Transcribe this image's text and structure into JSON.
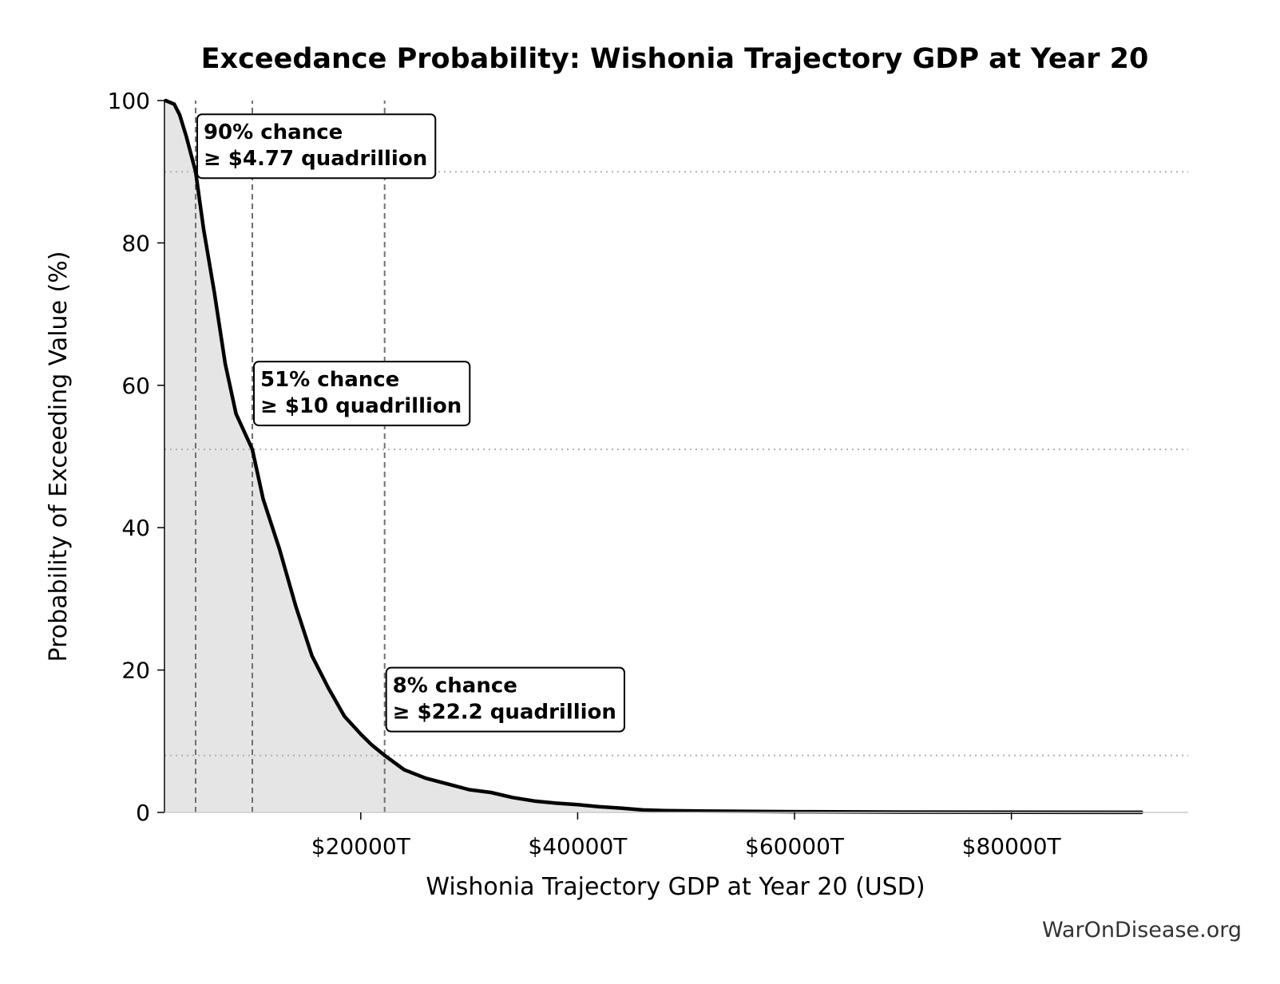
{
  "chart_data": {
    "type": "area",
    "title": "Exceedance Probability: Wishonia Trajectory GDP at Year 20",
    "xlabel": "Wishonia Trajectory GDP at Year 20 (USD)",
    "ylabel": "Probability of Exceeding Value (%)",
    "xlim": [
      1900,
      96300
    ],
    "ylim": [
      0,
      100
    ],
    "x_ticks": [
      20000,
      40000,
      60000,
      80000
    ],
    "x_tick_labels": [
      "$20000T",
      "$40000T",
      "$60000T",
      "$80000T"
    ],
    "y_ticks": [
      0,
      20,
      40,
      60,
      80,
      100
    ],
    "y_tick_labels": [
      "0",
      "20",
      "40",
      "60",
      "80",
      "100"
    ],
    "curve": {
      "x": [
        2000,
        2800,
        3300,
        3900,
        4770,
        5500,
        6500,
        7500,
        8500,
        10000,
        11000,
        12500,
        14000,
        15500,
        17000,
        18500,
        20000,
        21000,
        22200,
        24000,
        26000,
        28000,
        30000,
        32000,
        34000,
        36000,
        38000,
        40000,
        42000,
        44000,
        46000,
        48000,
        52000,
        60000,
        70000,
        80000,
        92000
      ],
      "y": [
        100,
        99.5,
        98,
        95,
        90,
        82,
        73,
        63,
        56,
        51,
        44,
        37,
        29,
        22,
        17.5,
        13.5,
        11,
        9.5,
        8,
        6,
        4.8,
        4,
        3.2,
        2.8,
        2.1,
        1.6,
        1.3,
        1.1,
        0.8,
        0.6,
        0.35,
        0.25,
        0.18,
        0.1,
        0.05,
        0.02,
        0.01
      ]
    },
    "thresholds": [
      {
        "x": 4770,
        "y": 90,
        "line1": "90% chance",
        "line2": "≥ $4.77 quadrillion"
      },
      {
        "x": 10000,
        "y": 51,
        "line1": "51% chance",
        "line2": "≥ $10 quadrillion"
      },
      {
        "x": 22200,
        "y": 8,
        "line1": "8% chance",
        "line2": "≥ $22.2 quadrillion"
      }
    ],
    "grid": false,
    "colors": {
      "line": "#000000",
      "fill": "#e5e5e5",
      "vline": "#707070",
      "hline": "#b0b0b0"
    }
  },
  "footer": "WarOnDisease.org"
}
